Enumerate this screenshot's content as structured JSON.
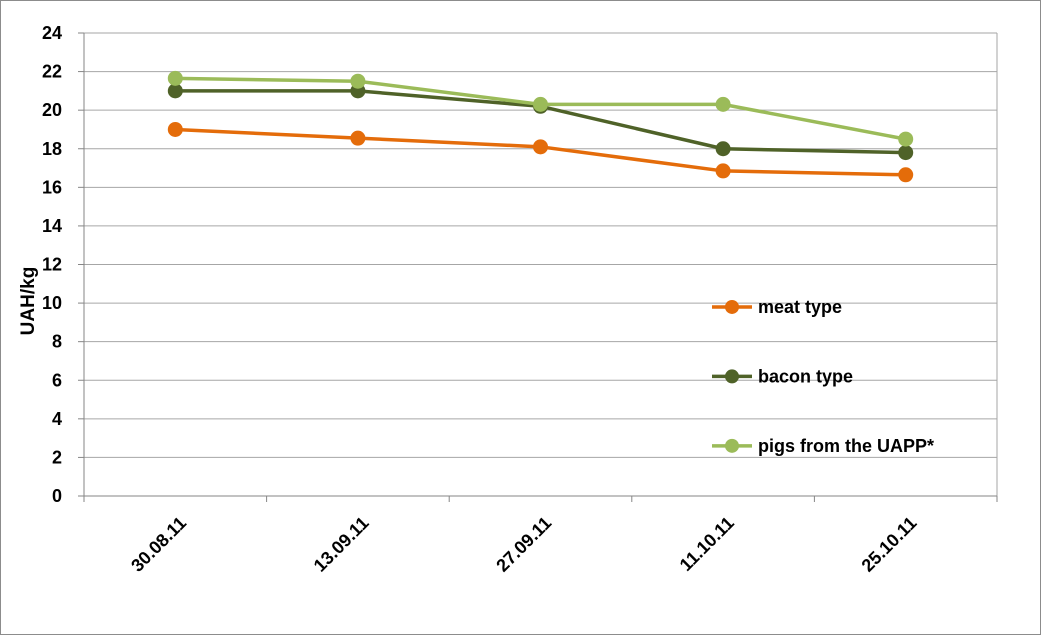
{
  "chart_data": {
    "type": "line",
    "categories": [
      "30.08.11",
      "13.09.11",
      "27.09.11",
      "11.10.11",
      "25.10.11"
    ],
    "series": [
      {
        "name": "meat type",
        "color": "#e46c0a",
        "values": [
          19.0,
          18.55,
          18.1,
          16.85,
          16.65
        ]
      },
      {
        "name": "bacon type",
        "color": "#4f6228",
        "values": [
          21.0,
          21.0,
          20.2,
          18.0,
          17.8
        ]
      },
      {
        "name": "pigs from the UAPP*",
        "color": "#9bbb59",
        "values": [
          21.65,
          21.5,
          20.3,
          20.3,
          18.5
        ]
      }
    ],
    "title": "",
    "xlabel": "",
    "ylabel": "UAH/kg",
    "ylim": [
      0,
      24
    ],
    "yticks": [
      "0",
      "2",
      "4",
      "6",
      "8",
      "10",
      "12",
      "14",
      "16",
      "18",
      "20",
      "22",
      "24"
    ],
    "grid": true,
    "legend_position": "right"
  }
}
